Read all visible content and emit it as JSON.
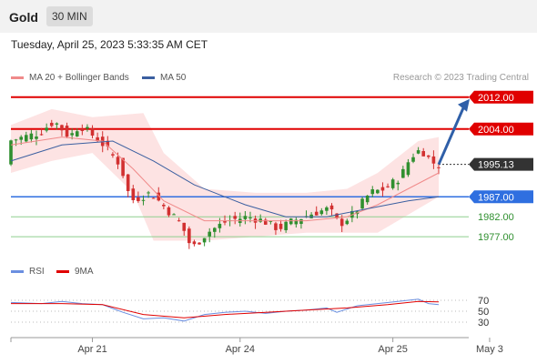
{
  "header": {
    "instrument": "Gold",
    "timeframe": "30 MIN"
  },
  "datetime": "Tuesday, April 25, 2023 5:33:35 AM CET",
  "legend": {
    "ma20_label": "MA 20 + Bollinger Bands",
    "ma50_label": "MA 50",
    "research": "Research © 2023 Trading Central",
    "rsi_label": "RSI",
    "ma9_label": "9MA"
  },
  "colors": {
    "ma20": "#f08a8a",
    "ma50": "#3b5fa0",
    "band": "#fde3e3",
    "resistance": "#e00000",
    "pivot": "#2f6fe0",
    "support": "#8fcf8f",
    "candle_up": "#2f8f2f",
    "candle_down": "#d23030",
    "rsi": "#6b8fe0",
    "rsi_ma": "#e00000",
    "arrow": "#2f5fa8",
    "current": "#333333"
  },
  "chart_data": {
    "type": "candlestick",
    "x_ticks": [
      "Apr 21",
      "Apr 24",
      "Apr 25",
      "May 3"
    ],
    "price_range": [
      1972,
      2014
    ],
    "levels": [
      {
        "label": "2012.00",
        "value": 2012,
        "kind": "resistance"
      },
      {
        "label": "2004.00",
        "value": 2004,
        "kind": "resistance"
      },
      {
        "label": "1995.13",
        "value": 1995.13,
        "kind": "current"
      },
      {
        "label": "1987.00",
        "value": 1987,
        "kind": "pivot"
      },
      {
        "label": "1982.00",
        "value": 1982,
        "kind": "support"
      },
      {
        "label": "1977.00",
        "value": 1977,
        "kind": "support"
      }
    ],
    "price_path": [
      [
        0,
        2001
      ],
      [
        6,
        2003
      ],
      [
        9,
        2006
      ],
      [
        12,
        2002
      ],
      [
        14,
        2005
      ],
      [
        18,
        2001
      ],
      [
        22,
        1995
      ],
      [
        24,
        1986
      ],
      [
        28,
        1988
      ],
      [
        31,
        1984
      ],
      [
        34,
        1980
      ],
      [
        36,
        1974
      ],
      [
        39,
        1978
      ],
      [
        43,
        1981
      ],
      [
        47,
        1982
      ],
      [
        50,
        1981
      ],
      [
        53,
        1979
      ],
      [
        56,
        1981
      ],
      [
        60,
        1983
      ],
      [
        63,
        1984
      ],
      [
        65,
        1980
      ],
      [
        68,
        1983
      ],
      [
        71,
        1988
      ],
      [
        74,
        1989
      ],
      [
        77,
        1992
      ],
      [
        79,
        1997
      ],
      [
        81,
        1999
      ],
      [
        83,
        1996
      ],
      [
        84,
        1995
      ]
    ],
    "ma20_path": [
      [
        0,
        2000
      ],
      [
        10,
        2002
      ],
      [
        18,
        2001
      ],
      [
        24,
        1994
      ],
      [
        30,
        1986
      ],
      [
        38,
        1981
      ],
      [
        48,
        1981
      ],
      [
        58,
        1981
      ],
      [
        66,
        1982
      ],
      [
        72,
        1985
      ],
      [
        78,
        1989
      ],
      [
        84,
        1993
      ]
    ],
    "ma50_path": [
      [
        0,
        1996
      ],
      [
        10,
        2000
      ],
      [
        20,
        2001
      ],
      [
        28,
        1996
      ],
      [
        36,
        1990
      ],
      [
        46,
        1985
      ],
      [
        54,
        1982
      ],
      [
        62,
        1982
      ],
      [
        70,
        1984
      ],
      [
        78,
        1986
      ],
      [
        84,
        1987
      ]
    ],
    "bb_upper_path": [
      [
        0,
        2005
      ],
      [
        8,
        2009
      ],
      [
        16,
        2007
      ],
      [
        26,
        2008
      ],
      [
        30,
        1998
      ],
      [
        38,
        1989
      ],
      [
        48,
        1988
      ],
      [
        58,
        1988
      ],
      [
        66,
        1989
      ],
      [
        72,
        1993
      ],
      [
        80,
        2001
      ],
      [
        84,
        2002
      ]
    ],
    "bb_lower_path": [
      [
        0,
        1993
      ],
      [
        8,
        1996
      ],
      [
        16,
        1998
      ],
      [
        24,
        1988
      ],
      [
        28,
        1976
      ],
      [
        38,
        1976
      ],
      [
        48,
        1977
      ],
      [
        58,
        1978
      ],
      [
        66,
        1978
      ],
      [
        72,
        1978
      ],
      [
        80,
        1984
      ],
      [
        84,
        1987
      ]
    ],
    "rsi": {
      "range": [
        0,
        100
      ],
      "ticks": [
        "70",
        "50",
        "30"
      ],
      "rsi_path": [
        [
          0,
          66
        ],
        [
          6,
          64
        ],
        [
          10,
          68
        ],
        [
          14,
          64
        ],
        [
          18,
          62
        ],
        [
          22,
          48
        ],
        [
          26,
          36
        ],
        [
          30,
          38
        ],
        [
          34,
          32
        ],
        [
          38,
          44
        ],
        [
          42,
          48
        ],
        [
          46,
          50
        ],
        [
          50,
          46
        ],
        [
          54,
          50
        ],
        [
          58,
          52
        ],
        [
          62,
          56
        ],
        [
          64,
          48
        ],
        [
          68,
          60
        ],
        [
          72,
          64
        ],
        [
          76,
          68
        ],
        [
          80,
          72
        ],
        [
          82,
          64
        ],
        [
          84,
          62
        ]
      ],
      "ma_path": [
        [
          0,
          64
        ],
        [
          10,
          64
        ],
        [
          18,
          62
        ],
        [
          26,
          44
        ],
        [
          34,
          38
        ],
        [
          42,
          44
        ],
        [
          50,
          48
        ],
        [
          58,
          52
        ],
        [
          66,
          56
        ],
        [
          74,
          62
        ],
        [
          80,
          68
        ],
        [
          84,
          67
        ]
      ]
    }
  }
}
